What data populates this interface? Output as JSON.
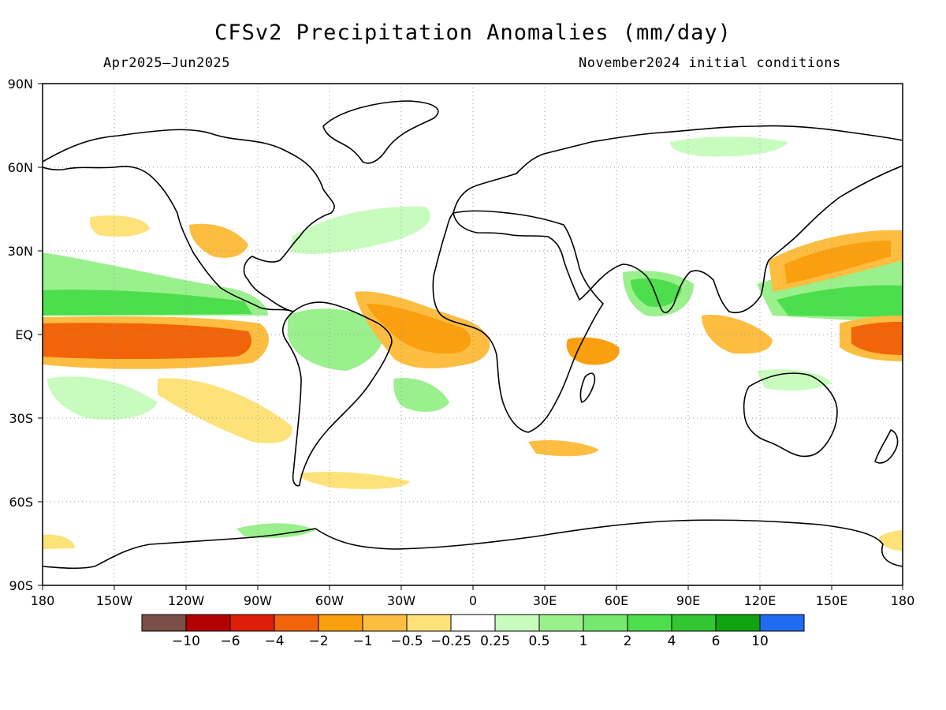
{
  "title": "CFSv2 Precipitation Anomalies (mm/day)",
  "period": "Apr2025–Jun2025",
  "initial_conditions": "November2024 initial conditions",
  "lat_labels": [
    "90N",
    "60N",
    "30N",
    "EQ",
    "30S",
    "60S",
    "90S"
  ],
  "lon_labels": [
    "180",
    "150W",
    "120W",
    "90W",
    "60W",
    "30W",
    "0",
    "30E",
    "60E",
    "90E",
    "120E",
    "150E",
    "180"
  ],
  "colorbar": {
    "colors": [
      "#7a4f47",
      "#b40000",
      "#de1e0a",
      "#f2640a",
      "#fa9f0f",
      "#fcbd41",
      "#fde27a",
      "#ffffff",
      "#c8fcbe",
      "#99f08c",
      "#76e870",
      "#4cde4c",
      "#33c633",
      "#11a211",
      "#1f6cf2"
    ],
    "labels": [
      "−10",
      "−6",
      "−4",
      "−2",
      "−1",
      "−0.5",
      "−0.25",
      "0.25",
      "0.5",
      "1",
      "2",
      "4",
      "6",
      "10"
    ]
  }
}
